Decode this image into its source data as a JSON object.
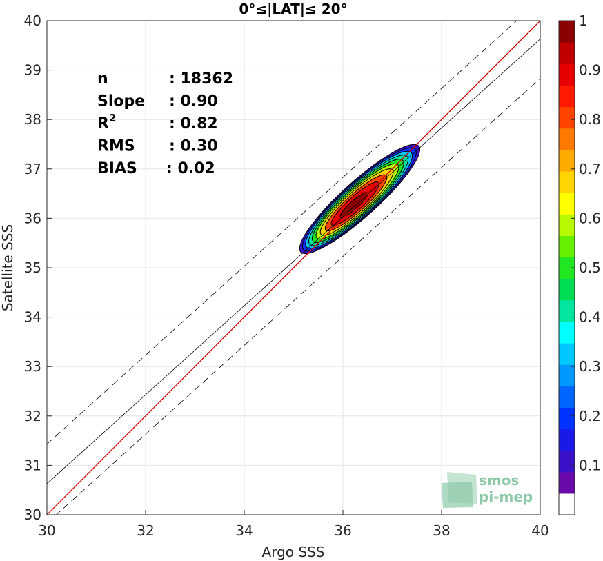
{
  "chart_data": {
    "type": "contour-scatter",
    "title": "0°≤|LAT|≤ 20°",
    "xlabel": "Argo SSS",
    "ylabel": "Satellite SSS",
    "xlim": [
      30,
      40
    ],
    "ylim": [
      30,
      40
    ],
    "xticks": [
      30,
      32,
      34,
      36,
      38,
      40
    ],
    "yticks": [
      30,
      31,
      32,
      33,
      34,
      35,
      36,
      37,
      38,
      39,
      40
    ],
    "grid": true,
    "stats": [
      {
        "key": "n",
        "sup": "",
        "value": ": 18362"
      },
      {
        "key": "Slope",
        "sup": "",
        "value": ": 0.90"
      },
      {
        "key": "R",
        "sup": "2",
        "value": ": 0.82"
      },
      {
        "key": "RMS",
        "sup": "",
        "value": ": 0.30"
      },
      {
        "key": "BIAS",
        "sup": "",
        "value": ": 0.02"
      }
    ],
    "lines": {
      "identity": {
        "slope": 1.0,
        "intercept": 0.0,
        "color": "#cc0000"
      },
      "fit": {
        "slope": 0.9,
        "intercept": 3.63
      },
      "fit_bounds_offset": 0.8
    },
    "density_peak": {
      "x": 36.15,
      "y": 36.2
    },
    "contour_levels": [
      0.05,
      0.15,
      0.25,
      0.35,
      0.45,
      0.55,
      0.65,
      0.75,
      0.85,
      0.95
    ],
    "colorbar": {
      "range": [
        0,
        1
      ],
      "ticks": [
        0.1,
        0.2,
        0.3,
        0.4,
        0.5,
        0.6,
        0.7,
        0.8,
        0.9,
        1
      ],
      "tick_labels": [
        "0.1",
        "0.2",
        "0.3",
        "0.4",
        "0.5",
        "0.6",
        "0.7",
        "0.8",
        "0.9",
        "1"
      ],
      "colors": [
        "#ffffff",
        "#6a0aab",
        "#3a10c8",
        "#1a1ae8",
        "#0033ff",
        "#0066ff",
        "#0099ff",
        "#00c8ff",
        "#00ffff",
        "#00e6a0",
        "#00dd55",
        "#22e622",
        "#66f000",
        "#b8f800",
        "#ffff00",
        "#ffd400",
        "#ffaa00",
        "#ff7a00",
        "#ff4400",
        "#ff1a00",
        "#e60000",
        "#c00000",
        "#8b0000"
      ]
    }
  },
  "logo": {
    "line1": "smos",
    "line2": "pi-mep"
  }
}
